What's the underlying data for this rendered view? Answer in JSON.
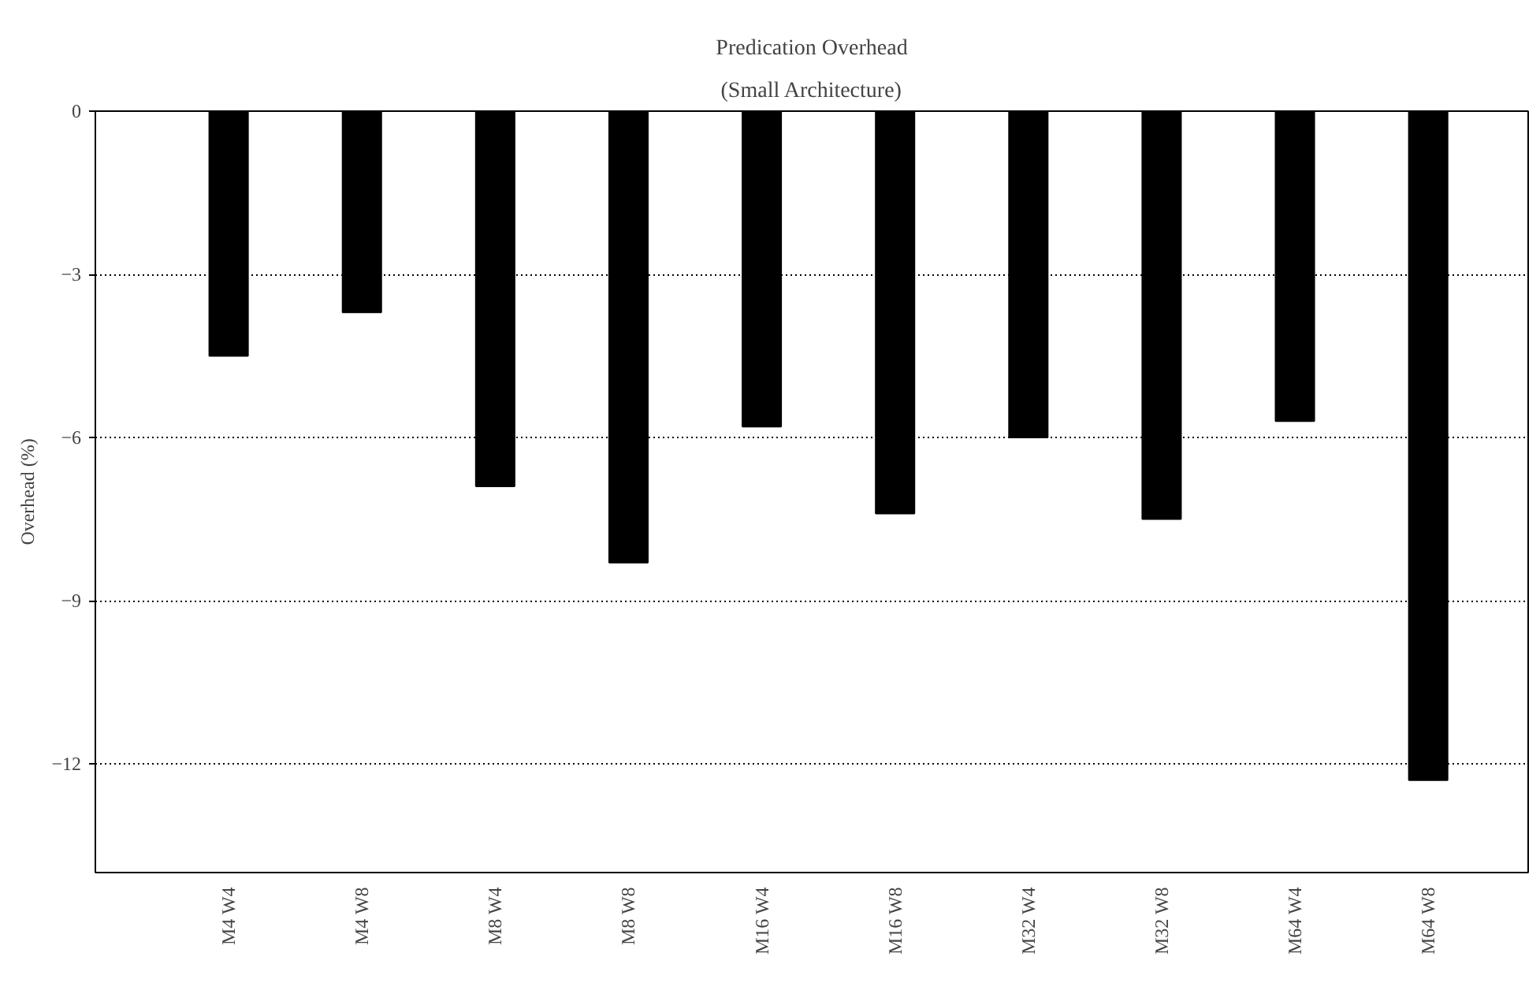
{
  "chart_data": {
    "type": "bar",
    "title": "Predication Overhead",
    "subtitle": "(Small Architecture)",
    "ylabel": "Overhead (%)",
    "categories": [
      "M4 W4",
      "M4 W8",
      "M8 W4",
      "M8 W8",
      "M16 W4",
      "M16 W8",
      "M32 W4",
      "M32 W8",
      "M64 W4",
      "M64 W8"
    ],
    "values": [
      -4.5,
      -3.7,
      -6.9,
      -8.3,
      -5.8,
      -7.4,
      -6.0,
      -7.5,
      -5.7,
      -12.3
    ],
    "color": "#000000",
    "ylim": [
      -14,
      0
    ],
    "yticks": [
      0,
      -3,
      -6,
      -9,
      -12
    ],
    "grid": "y"
  }
}
